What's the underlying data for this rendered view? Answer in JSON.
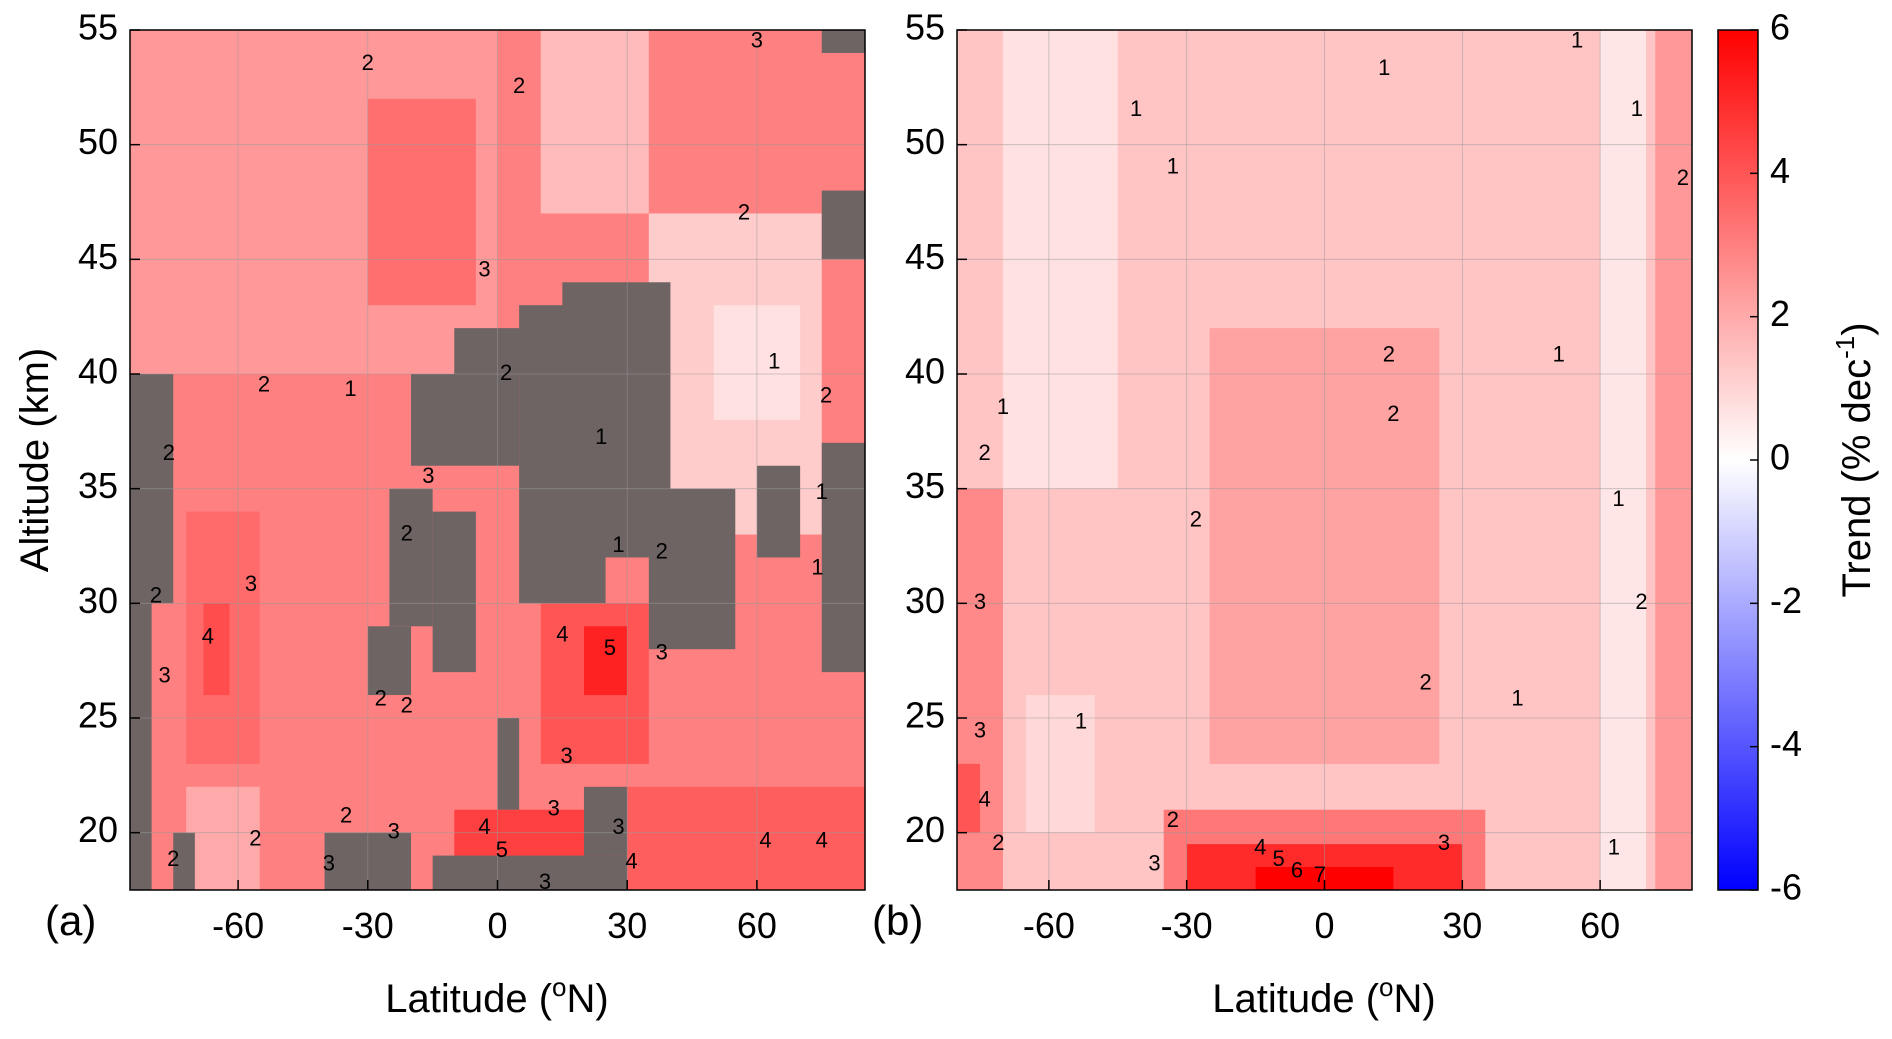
{
  "chart_data": [
    {
      "type": "heatmap",
      "panel_label": "(a)",
      "xlabel": "Latitude (oN)",
      "xlabel_parts": [
        "Latitude (",
        "o",
        "N)"
      ],
      "ylabel": "Altitude (km)",
      "xlim": [
        -85,
        85
      ],
      "ylim": [
        17.5,
        55
      ],
      "x_ticks": [
        -60,
        -30,
        0,
        30,
        60
      ],
      "x_tick_labels": [
        "-60",
        "-30",
        "0",
        "30",
        "60"
      ],
      "y_ticks": [
        20,
        25,
        30,
        35,
        40,
        45,
        50,
        55
      ],
      "y_tick_labels": [
        "20",
        "25",
        "30",
        "35",
        "40",
        "45",
        "50",
        "55"
      ],
      "grid": true,
      "no_data_color": "#6e6464",
      "regions": [
        {
          "value": 3.0,
          "lat": [
            -85,
            85
          ],
          "alt": [
            17.5,
            55
          ]
        },
        {
          "value": 2.4,
          "lat": [
            -85,
            0
          ],
          "alt": [
            40,
            55
          ]
        },
        {
          "value": 3.4,
          "lat": [
            -30,
            -5
          ],
          "alt": [
            43,
            52
          ]
        },
        {
          "value": 1.6,
          "lat": [
            10,
            35
          ],
          "alt": [
            47,
            55
          ]
        },
        {
          "value": 1.2,
          "lat": [
            35,
            75
          ],
          "alt": [
            33,
            47
          ]
        },
        {
          "value": 0.7,
          "lat": [
            50,
            70
          ],
          "alt": [
            38,
            43
          ]
        },
        {
          "value": 3.5,
          "lat": [
            -72,
            -55
          ],
          "alt": [
            23,
            34
          ]
        },
        {
          "value": 4.2,
          "lat": [
            -68,
            -62
          ],
          "alt": [
            26,
            30
          ]
        },
        {
          "value": 4.0,
          "lat": [
            10,
            35
          ],
          "alt": [
            23,
            30
          ]
        },
        {
          "value": 5.2,
          "lat": [
            20,
            30
          ],
          "alt": [
            26,
            29
          ]
        },
        {
          "value": 4.5,
          "lat": [
            -10,
            25
          ],
          "alt": [
            17.5,
            21
          ]
        },
        {
          "value": 3.8,
          "lat": [
            25,
            85
          ],
          "alt": [
            17.5,
            22
          ]
        },
        {
          "value": 2.0,
          "lat": [
            -72,
            -55
          ],
          "alt": [
            17.5,
            22
          ]
        }
      ],
      "no_data_boxes": [
        {
          "lat": [
            -85,
            -75
          ],
          "alt": [
            30,
            40
          ]
        },
        {
          "lat": [
            -85,
            -80
          ],
          "alt": [
            17.5,
            30
          ]
        },
        {
          "lat": [
            -75,
            -70
          ],
          "alt": [
            17.5,
            20
          ]
        },
        {
          "lat": [
            -25,
            -15
          ],
          "alt": [
            29,
            35
          ]
        },
        {
          "lat": [
            -15,
            -5
          ],
          "alt": [
            27,
            34
          ]
        },
        {
          "lat": [
            -30,
            -20
          ],
          "alt": [
            26,
            29
          ]
        },
        {
          "lat": [
            -20,
            5
          ],
          "alt": [
            36,
            40
          ]
        },
        {
          "lat": [
            -10,
            10
          ],
          "alt": [
            40,
            42
          ]
        },
        {
          "lat": [
            5,
            25
          ],
          "alt": [
            30,
            43
          ]
        },
        {
          "lat": [
            15,
            40
          ],
          "alt": [
            32,
            44
          ]
        },
        {
          "lat": [
            35,
            55
          ],
          "alt": [
            28,
            35
          ]
        },
        {
          "lat": [
            0,
            5
          ],
          "alt": [
            21,
            25
          ]
        },
        {
          "lat": [
            -40,
            -20
          ],
          "alt": [
            17.5,
            20
          ]
        },
        {
          "lat": [
            -15,
            30
          ],
          "alt": [
            17.5,
            19
          ]
        },
        {
          "lat": [
            20,
            30
          ],
          "alt": [
            19,
            22
          ]
        },
        {
          "lat": [
            75,
            85
          ],
          "alt": [
            45,
            48
          ]
        },
        {
          "lat": [
            75,
            85
          ],
          "alt": [
            27,
            37
          ]
        },
        {
          "lat": [
            60,
            70
          ],
          "alt": [
            32,
            36
          ]
        },
        {
          "lat": [
            75,
            85
          ],
          "alt": [
            54,
            55
          ]
        }
      ],
      "contour_labels": [
        {
          "text": "2",
          "lat": -30,
          "alt": 53.5
        },
        {
          "text": "2",
          "lat": 5,
          "alt": 52.5
        },
        {
          "text": "3",
          "lat": 60,
          "alt": 54.5
        },
        {
          "text": "2",
          "lat": 57,
          "alt": 47
        },
        {
          "text": "3",
          "lat": -3,
          "alt": 44.5
        },
        {
          "text": "2",
          "lat": 2,
          "alt": 40
        },
        {
          "text": "2",
          "lat": -54,
          "alt": 39.5
        },
        {
          "text": "1",
          "lat": -34,
          "alt": 39.3
        },
        {
          "text": "1",
          "lat": 24,
          "alt": 37.2
        },
        {
          "text": "1",
          "lat": 64,
          "alt": 40.5
        },
        {
          "text": "2",
          "lat": 76,
          "alt": 39
        },
        {
          "text": "2",
          "lat": -76,
          "alt": 36.5
        },
        {
          "text": "3",
          "lat": -16,
          "alt": 35.5
        },
        {
          "text": "2",
          "lat": -21,
          "alt": 33
        },
        {
          "text": "1",
          "lat": 28,
          "alt": 32.5
        },
        {
          "text": "2",
          "lat": 38,
          "alt": 32.2
        },
        {
          "text": "1",
          "lat": 75,
          "alt": 34.8
        },
        {
          "text": "1",
          "lat": 74,
          "alt": 31.5
        },
        {
          "text": "2",
          "lat": -79,
          "alt": 30.3
        },
        {
          "text": "3",
          "lat": -57,
          "alt": 30.8
        },
        {
          "text": "4",
          "lat": -67,
          "alt": 28.5
        },
        {
          "text": "4",
          "lat": 15,
          "alt": 28.6
        },
        {
          "text": "5",
          "lat": 26,
          "alt": 28
        },
        {
          "text": "3",
          "lat": 38,
          "alt": 27.8
        },
        {
          "text": "2",
          "lat": -27,
          "alt": 25.8
        },
        {
          "text": "2",
          "lat": -21,
          "alt": 25.5
        },
        {
          "text": "3",
          "lat": -77,
          "alt": 26.8
        },
        {
          "text": "3",
          "lat": 16,
          "alt": 23.3
        },
        {
          "text": "3",
          "lat": 13,
          "alt": 21
        },
        {
          "text": "2",
          "lat": -35,
          "alt": 20.7
        },
        {
          "text": "3",
          "lat": -24,
          "alt": 20
        },
        {
          "text": "3",
          "lat": 28,
          "alt": 20.2
        },
        {
          "text": "4",
          "lat": -3,
          "alt": 20.2
        },
        {
          "text": "5",
          "lat": 1,
          "alt": 19.2
        },
        {
          "text": "2",
          "lat": -56,
          "alt": 19.7
        },
        {
          "text": "2",
          "lat": -75,
          "alt": 18.8
        },
        {
          "text": "3",
          "lat": -39,
          "alt": 18.6
        },
        {
          "text": "4",
          "lat": 31,
          "alt": 18.7
        },
        {
          "text": "3",
          "lat": 11,
          "alt": 17.8
        },
        {
          "text": "4",
          "lat": 62,
          "alt": 19.6
        },
        {
          "text": "4",
          "lat": 75,
          "alt": 19.6
        }
      ]
    },
    {
      "type": "heatmap",
      "panel_label": "(b)",
      "xlabel": "Latitude (oN)",
      "xlabel_parts": [
        "Latitude (",
        "o",
        "N)"
      ],
      "xlim": [
        -80,
        80
      ],
      "ylim": [
        17.5,
        55
      ],
      "x_ticks": [
        -60,
        -30,
        0,
        30,
        60
      ],
      "x_tick_labels": [
        "-60",
        "-30",
        "0",
        "30",
        "60"
      ],
      "y_ticks": [
        20,
        25,
        30,
        35,
        40,
        45,
        50,
        55
      ],
      "y_tick_labels": [
        "20",
        "25",
        "30",
        "35",
        "40",
        "45",
        "50",
        "55"
      ],
      "grid": true,
      "regions": [
        {
          "value": 1.4,
          "lat": [
            -80,
            80
          ],
          "alt": [
            17.5,
            55
          ]
        },
        {
          "value": 0.7,
          "lat": [
            -70,
            -45
          ],
          "alt": [
            35,
            55
          ]
        },
        {
          "value": 0.6,
          "lat": [
            60,
            70
          ],
          "alt": [
            17.5,
            55
          ]
        },
        {
          "value": 0.9,
          "lat": [
            -65,
            -50
          ],
          "alt": [
            20,
            26
          ]
        },
        {
          "value": 2.2,
          "lat": [
            -25,
            25
          ],
          "alt": [
            23,
            42
          ]
        },
        {
          "value": 2.8,
          "lat": [
            -80,
            -70
          ],
          "alt": [
            17.5,
            35
          ]
        },
        {
          "value": 4.0,
          "lat": [
            -80,
            -75
          ],
          "alt": [
            20,
            23
          ]
        },
        {
          "value": 2.4,
          "lat": [
            72,
            80
          ],
          "alt": [
            17.5,
            55
          ]
        },
        {
          "value": 3.2,
          "lat": [
            -35,
            35
          ],
          "alt": [
            17.5,
            21
          ]
        },
        {
          "value": 5.0,
          "lat": [
            -30,
            30
          ],
          "alt": [
            17.5,
            19.5
          ]
        },
        {
          "value": 6.0,
          "lat": [
            -15,
            15
          ],
          "alt": [
            17.5,
            18.5
          ]
        }
      ],
      "contour_labels": [
        {
          "text": "1",
          "lat": 55,
          "alt": 54.5
        },
        {
          "text": "1",
          "lat": 68,
          "alt": 51.5
        },
        {
          "text": "1",
          "lat": 13,
          "alt": 53.3
        },
        {
          "text": "1",
          "lat": -41,
          "alt": 51.5
        },
        {
          "text": "1",
          "lat": -33,
          "alt": 49
        },
        {
          "text": "2",
          "lat": 78,
          "alt": 48.5
        },
        {
          "text": "2",
          "lat": 14,
          "alt": 40.8
        },
        {
          "text": "2",
          "lat": 15,
          "alt": 38.2
        },
        {
          "text": "1",
          "lat": 51,
          "alt": 40.8
        },
        {
          "text": "1",
          "lat": -70,
          "alt": 38.5
        },
        {
          "text": "2",
          "lat": -74,
          "alt": 36.5
        },
        {
          "text": "1",
          "lat": 64,
          "alt": 34.5
        },
        {
          "text": "2",
          "lat": -28,
          "alt": 33.6
        },
        {
          "text": "3",
          "lat": -75,
          "alt": 30
        },
        {
          "text": "2",
          "lat": 69,
          "alt": 30
        },
        {
          "text": "2",
          "lat": 22,
          "alt": 26.5
        },
        {
          "text": "1",
          "lat": 42,
          "alt": 25.8
        },
        {
          "text": "1",
          "lat": -53,
          "alt": 24.8
        },
        {
          "text": "3",
          "lat": -75,
          "alt": 24.4
        },
        {
          "text": "4",
          "lat": -74,
          "alt": 21.4
        },
        {
          "text": "2",
          "lat": -33,
          "alt": 20.5
        },
        {
          "text": "2",
          "lat": -71,
          "alt": 19.5
        },
        {
          "text": "3",
          "lat": 26,
          "alt": 19.5
        },
        {
          "text": "1",
          "lat": 63,
          "alt": 19.3
        },
        {
          "text": "4",
          "lat": -14,
          "alt": 19.3
        },
        {
          "text": "3",
          "lat": -37,
          "alt": 18.6
        },
        {
          "text": "5",
          "lat": -10,
          "alt": 18.8
        },
        {
          "text": "6",
          "lat": -6,
          "alt": 18.3
        },
        {
          "text": "7",
          "lat": -1,
          "alt": 18.1
        }
      ]
    }
  ],
  "colorbar": {
    "label": "Trend (% dec-1)",
    "label_parts": [
      "Trend (% dec",
      "-1",
      ")"
    ],
    "range": [
      -6,
      6
    ],
    "ticks": [
      6,
      4,
      2,
      0,
      -2,
      -4,
      -6
    ],
    "tick_labels": [
      "6",
      "4",
      "2",
      "0",
      "-2",
      "-4",
      "-6"
    ],
    "colors": {
      "min": "#0000ff",
      "mid": "#ffffff",
      "max": "#ff0000"
    }
  }
}
